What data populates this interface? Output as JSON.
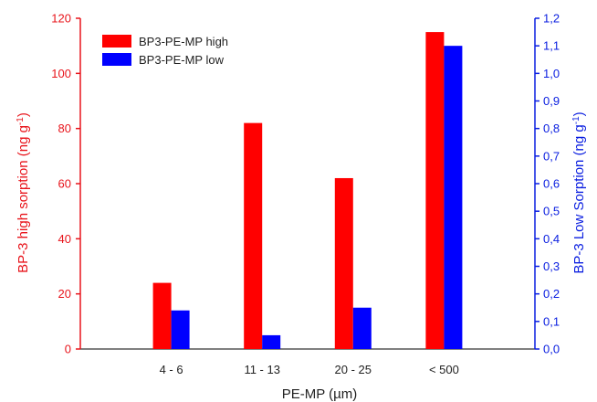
{
  "chart_data": {
    "type": "bar",
    "categories": [
      "4 - 6",
      "11 - 13",
      "20 - 25",
      "< 500"
    ],
    "series": [
      {
        "name": "BP3-PE-MP high",
        "axis": "left",
        "color": "#ff0000",
        "values": [
          24,
          82,
          62,
          115
        ]
      },
      {
        "name": "BP3-PE-MP low",
        "axis": "right",
        "color": "#0000ff",
        "values": [
          0.14,
          0.05,
          0.15,
          1.1
        ]
      }
    ],
    "xlabel": "PE-MP (µm)",
    "ylabel_left": {
      "main": "BP-3 high sorption (ng g",
      "sup": "-1",
      "end": ")"
    },
    "ylabel_right": {
      "main": "BP-3 Low Sorption (ng g",
      "sup": "-1",
      "end": ")"
    },
    "ylim_left": [
      0,
      120
    ],
    "yticks_left": [
      "0",
      "20",
      "40",
      "60",
      "80",
      "100",
      "120"
    ],
    "ylim_right": [
      0,
      1.2
    ],
    "yticks_right": [
      "0,0",
      "0,1",
      "0,2",
      "0,3",
      "0,4",
      "0,5",
      "0,6",
      "0,7",
      "0,8",
      "0,9",
      "1,0",
      "1,1",
      "1,2"
    ],
    "left_axis_color": "#e8141b",
    "right_axis_color": "#0a1ee0",
    "legend_position": "top-left",
    "grid": false
  }
}
